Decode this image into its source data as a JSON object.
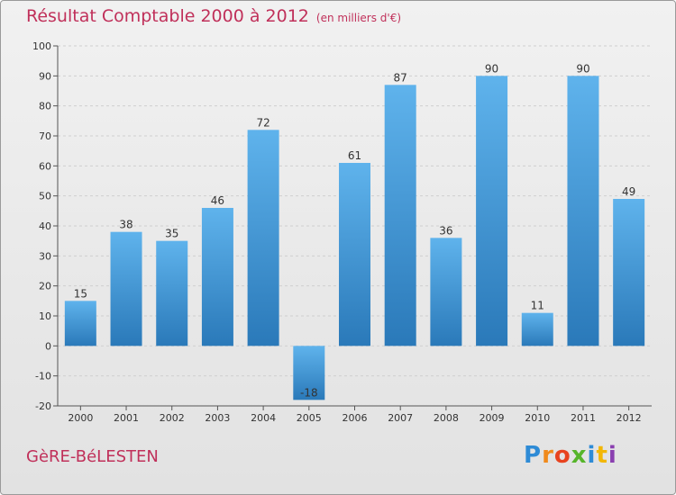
{
  "title": "Résultat Comptable 2000 à 2012",
  "subtitle": "(en milliers d'€)",
  "commune": "GèRE-BéLESTEN",
  "logo": {
    "letters": [
      "P",
      "r",
      "o",
      "x",
      "i",
      "t",
      "i"
    ],
    "colors": [
      "#2e8bd6",
      "#f08a1c",
      "#e8431f",
      "#56b52a",
      "#2e8bd6",
      "#f2b705",
      "#8a3fb0"
    ]
  },
  "colors": {
    "title": "#c0305a",
    "bar_top": "#5fb3ec",
    "bar_bottom": "#2a79b9",
    "grid": "#cfcfcf",
    "axis": "#555555"
  },
  "chart_data": {
    "type": "bar",
    "categories": [
      "2000",
      "2001",
      "2002",
      "2003",
      "2004",
      "2005",
      "2006",
      "2007",
      "2008",
      "2009",
      "2010",
      "2011",
      "2012"
    ],
    "values": [
      15,
      38,
      35,
      46,
      72,
      -18,
      61,
      87,
      36,
      90,
      11,
      90,
      49
    ],
    "title": "Résultat Comptable 2000 à 2012",
    "xlabel": "",
    "ylabel": "",
    "ylim": [
      -20,
      100
    ],
    "yticks": [
      -20,
      -10,
      0,
      10,
      20,
      30,
      40,
      50,
      60,
      70,
      80,
      90,
      100
    ],
    "grid": true
  }
}
